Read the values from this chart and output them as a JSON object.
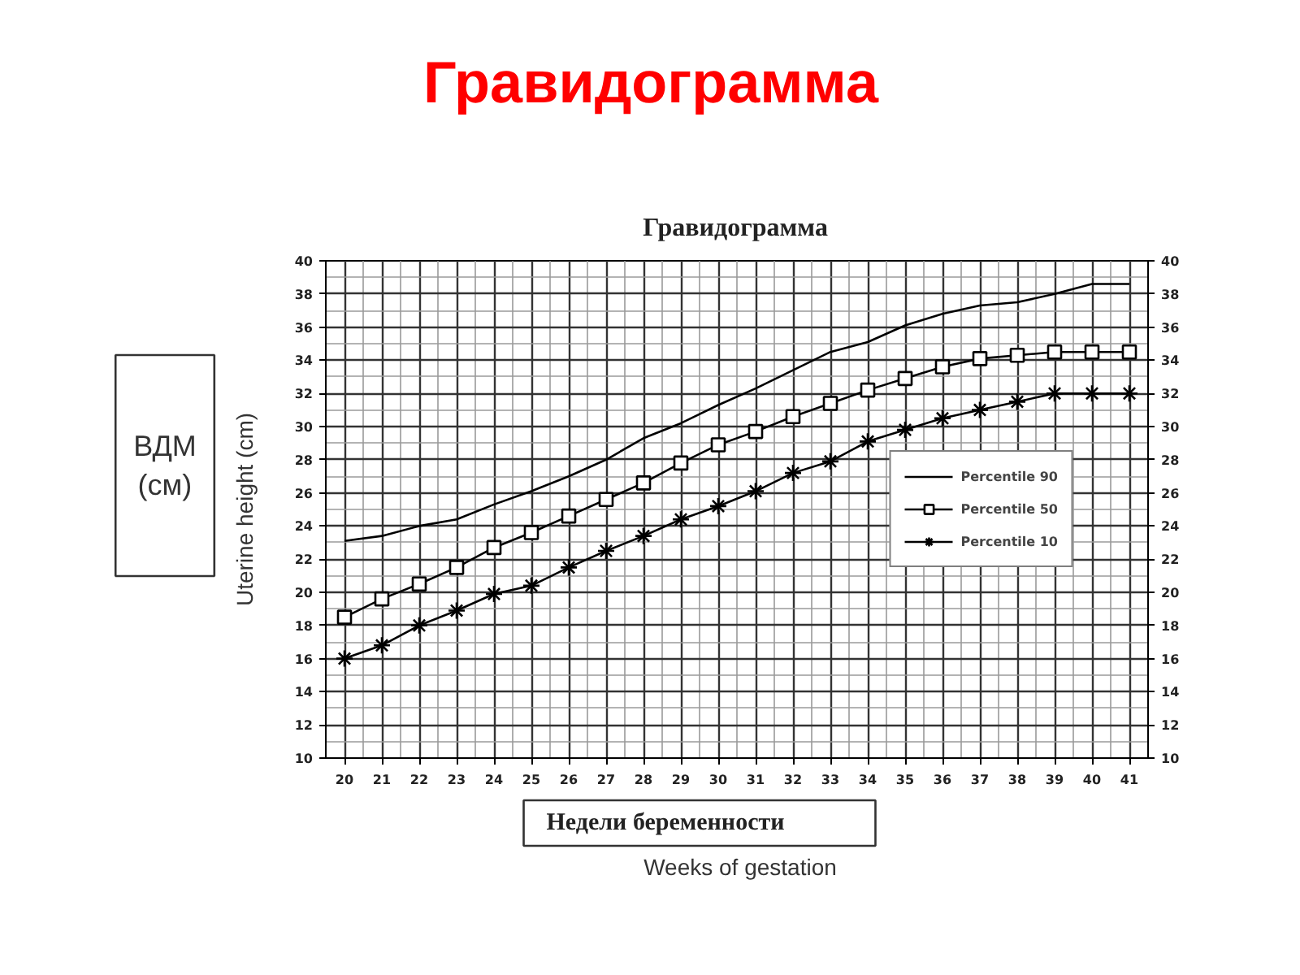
{
  "chart_data": {
    "type": "line",
    "title": "Гравидограмма",
    "subtitle": "Гравидограмма",
    "xlabel": "Недели беременности",
    "ylabel": "Uterine height (cm)",
    "annotations": [
      "Weeks of gestation",
      "ВДМ\n(см)"
    ],
    "x": [
      20,
      21,
      22,
      23,
      24,
      25,
      26,
      27,
      28,
      29,
      30,
      31,
      32,
      33,
      34,
      35,
      36,
      37,
      38,
      39,
      40,
      41
    ],
    "xlim": [
      19.5,
      41.5
    ],
    "xticks": [
      20,
      21,
      22,
      23,
      24,
      25,
      26,
      27,
      28,
      29,
      30,
      31,
      32,
      33,
      34,
      35,
      36,
      37,
      38,
      39,
      40,
      41
    ],
    "ylim": [
      10,
      40
    ],
    "yticks": [
      10,
      12,
      14,
      16,
      18,
      20,
      22,
      24,
      26,
      28,
      30,
      32,
      34,
      36,
      38,
      40
    ],
    "y2lim": [
      10,
      40
    ],
    "y2ticks": [
      10,
      12,
      14,
      16,
      18,
      20,
      22,
      24,
      26,
      28,
      30,
      32,
      34,
      36,
      38,
      40
    ],
    "grid": true,
    "legend": "right",
    "line_style": "solid",
    "series": [
      {
        "name": "Percentile 90",
        "color": "#000000",
        "marker": "none",
        "values": [
          23.1,
          23.4,
          24.0,
          24.4,
          25.3,
          26.1,
          27.0,
          28.0,
          29.3,
          30.2,
          31.3,
          32.3,
          33.4,
          34.5,
          35.1,
          36.1,
          36.8,
          37.3,
          37.5,
          38.0,
          38.6,
          38.6
        ]
      },
      {
        "name": "Percentile 50",
        "color": "#000000",
        "marker": "square",
        "values": [
          18.5,
          19.6,
          20.5,
          21.5,
          22.7,
          23.6,
          24.6,
          25.6,
          26.6,
          27.8,
          28.9,
          29.7,
          30.6,
          31.4,
          32.2,
          32.9,
          33.6,
          34.1,
          34.3,
          34.5,
          34.5,
          34.5
        ]
      },
      {
        "name": "Percentile 10",
        "color": "#000000",
        "marker": "cross",
        "values": [
          16.0,
          16.8,
          18.0,
          18.9,
          19.9,
          20.4,
          21.5,
          22.5,
          23.4,
          24.4,
          25.2,
          26.1,
          27.2,
          27.9,
          29.1,
          29.8,
          30.5,
          31.0,
          31.5,
          32.0,
          32.0,
          32.0
        ]
      }
    ]
  }
}
